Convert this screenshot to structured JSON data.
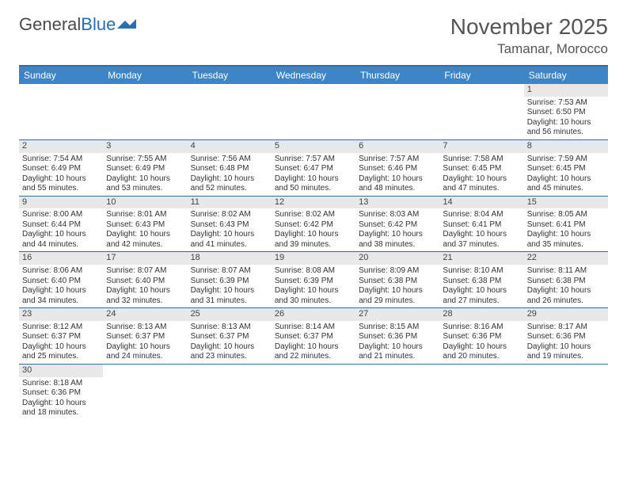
{
  "logo": {
    "general": "General",
    "blue": "Blue"
  },
  "title": "November 2025",
  "location": "Tamanar, Morocco",
  "colors": {
    "header_bg": "#3d85c6",
    "border": "#2a6db0",
    "daynum_bg": "#e8e8e8",
    "text": "#333333"
  },
  "weekdays": [
    "Sunday",
    "Monday",
    "Tuesday",
    "Wednesday",
    "Thursday",
    "Friday",
    "Saturday"
  ],
  "weeks": [
    [
      null,
      null,
      null,
      null,
      null,
      null,
      {
        "d": "1",
        "sr": "7:53 AM",
        "ss": "6:50 PM",
        "dl": "10 hours and 56 minutes."
      }
    ],
    [
      {
        "d": "2",
        "sr": "7:54 AM",
        "ss": "6:49 PM",
        "dl": "10 hours and 55 minutes."
      },
      {
        "d": "3",
        "sr": "7:55 AM",
        "ss": "6:49 PM",
        "dl": "10 hours and 53 minutes."
      },
      {
        "d": "4",
        "sr": "7:56 AM",
        "ss": "6:48 PM",
        "dl": "10 hours and 52 minutes."
      },
      {
        "d": "5",
        "sr": "7:57 AM",
        "ss": "6:47 PM",
        "dl": "10 hours and 50 minutes."
      },
      {
        "d": "6",
        "sr": "7:57 AM",
        "ss": "6:46 PM",
        "dl": "10 hours and 48 minutes."
      },
      {
        "d": "7",
        "sr": "7:58 AM",
        "ss": "6:45 PM",
        "dl": "10 hours and 47 minutes."
      },
      {
        "d": "8",
        "sr": "7:59 AM",
        "ss": "6:45 PM",
        "dl": "10 hours and 45 minutes."
      }
    ],
    [
      {
        "d": "9",
        "sr": "8:00 AM",
        "ss": "6:44 PM",
        "dl": "10 hours and 44 minutes."
      },
      {
        "d": "10",
        "sr": "8:01 AM",
        "ss": "6:43 PM",
        "dl": "10 hours and 42 minutes."
      },
      {
        "d": "11",
        "sr": "8:02 AM",
        "ss": "6:43 PM",
        "dl": "10 hours and 41 minutes."
      },
      {
        "d": "12",
        "sr": "8:02 AM",
        "ss": "6:42 PM",
        "dl": "10 hours and 39 minutes."
      },
      {
        "d": "13",
        "sr": "8:03 AM",
        "ss": "6:42 PM",
        "dl": "10 hours and 38 minutes."
      },
      {
        "d": "14",
        "sr": "8:04 AM",
        "ss": "6:41 PM",
        "dl": "10 hours and 37 minutes."
      },
      {
        "d": "15",
        "sr": "8:05 AM",
        "ss": "6:41 PM",
        "dl": "10 hours and 35 minutes."
      }
    ],
    [
      {
        "d": "16",
        "sr": "8:06 AM",
        "ss": "6:40 PM",
        "dl": "10 hours and 34 minutes."
      },
      {
        "d": "17",
        "sr": "8:07 AM",
        "ss": "6:40 PM",
        "dl": "10 hours and 32 minutes."
      },
      {
        "d": "18",
        "sr": "8:07 AM",
        "ss": "6:39 PM",
        "dl": "10 hours and 31 minutes."
      },
      {
        "d": "19",
        "sr": "8:08 AM",
        "ss": "6:39 PM",
        "dl": "10 hours and 30 minutes."
      },
      {
        "d": "20",
        "sr": "8:09 AM",
        "ss": "6:38 PM",
        "dl": "10 hours and 29 minutes."
      },
      {
        "d": "21",
        "sr": "8:10 AM",
        "ss": "6:38 PM",
        "dl": "10 hours and 27 minutes."
      },
      {
        "d": "22",
        "sr": "8:11 AM",
        "ss": "6:38 PM",
        "dl": "10 hours and 26 minutes."
      }
    ],
    [
      {
        "d": "23",
        "sr": "8:12 AM",
        "ss": "6:37 PM",
        "dl": "10 hours and 25 minutes."
      },
      {
        "d": "24",
        "sr": "8:13 AM",
        "ss": "6:37 PM",
        "dl": "10 hours and 24 minutes."
      },
      {
        "d": "25",
        "sr": "8:13 AM",
        "ss": "6:37 PM",
        "dl": "10 hours and 23 minutes."
      },
      {
        "d": "26",
        "sr": "8:14 AM",
        "ss": "6:37 PM",
        "dl": "10 hours and 22 minutes."
      },
      {
        "d": "27",
        "sr": "8:15 AM",
        "ss": "6:36 PM",
        "dl": "10 hours and 21 minutes."
      },
      {
        "d": "28",
        "sr": "8:16 AM",
        "ss": "6:36 PM",
        "dl": "10 hours and 20 minutes."
      },
      {
        "d": "29",
        "sr": "8:17 AM",
        "ss": "6:36 PM",
        "dl": "10 hours and 19 minutes."
      }
    ],
    [
      {
        "d": "30",
        "sr": "8:18 AM",
        "ss": "6:36 PM",
        "dl": "10 hours and 18 minutes."
      },
      null,
      null,
      null,
      null,
      null,
      null
    ]
  ],
  "labels": {
    "sunrise": "Sunrise: ",
    "sunset": "Sunset: ",
    "daylight": "Daylight: "
  }
}
